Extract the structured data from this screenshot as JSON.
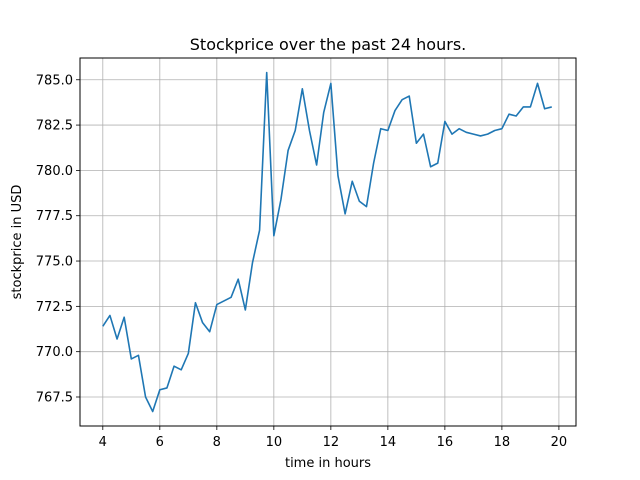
{
  "chart_data": {
    "type": "line",
    "title": "Stockprice over the past 24 hours.",
    "xlabel": "time in hours",
    "ylabel": "stockprice in USD",
    "xlim": [
      3.2,
      20.6
    ],
    "ylim": [
      765.9,
      786.2
    ],
    "grid": true,
    "x_ticks": [
      4,
      6,
      8,
      10,
      12,
      14,
      16,
      18,
      20
    ],
    "x_tick_labels": [
      "4",
      "6",
      "8",
      "10",
      "12",
      "14",
      "16",
      "18",
      "20"
    ],
    "y_ticks": [
      767.5,
      770.0,
      772.5,
      775.0,
      777.5,
      780.0,
      782.5,
      785.0
    ],
    "y_tick_labels": [
      "767.5",
      "770.0",
      "772.5",
      "775.0",
      "777.5",
      "780.0",
      "782.5",
      "785.0"
    ],
    "series": [
      {
        "color": "#1f77b4",
        "x": [
          4.0,
          4.25,
          4.5,
          4.75,
          5.0,
          5.25,
          5.5,
          5.75,
          6.0,
          6.25,
          6.5,
          6.75,
          7.0,
          7.25,
          7.5,
          7.75,
          8.0,
          8.25,
          8.5,
          8.75,
          9.0,
          9.25,
          9.5,
          9.75,
          10.0,
          10.25,
          10.5,
          10.75,
          11.0,
          11.25,
          11.5,
          11.75,
          12.0,
          12.25,
          12.5,
          12.75,
          13.0,
          13.25,
          13.5,
          13.75,
          14.0,
          14.25,
          14.5,
          14.75,
          15.0,
          15.25,
          15.5,
          15.75,
          16.0,
          16.25,
          16.5,
          16.75,
          17.0,
          17.25,
          17.5,
          17.75,
          18.0,
          18.25,
          18.5,
          18.75,
          19.0,
          19.25,
          19.5,
          19.75
        ],
        "y": [
          771.4,
          772.0,
          770.7,
          771.9,
          769.6,
          769.8,
          767.5,
          766.7,
          767.9,
          768.0,
          769.2,
          769.0,
          769.9,
          772.7,
          771.6,
          771.1,
          772.6,
          772.8,
          773.0,
          774.0,
          772.3,
          774.9,
          776.7,
          785.4,
          776.4,
          778.4,
          781.1,
          782.2,
          784.5,
          782.2,
          780.3,
          783.2,
          784.8,
          779.7,
          777.6,
          779.4,
          778.3,
          778.0,
          780.4,
          782.3,
          782.2,
          783.3,
          783.9,
          784.1,
          781.5,
          782.0,
          780.2,
          780.4,
          782.7,
          782.0,
          782.3,
          782.1,
          782.0,
          781.9,
          782.0,
          782.2,
          782.3,
          783.1,
          783.0,
          783.5,
          783.5,
          784.8,
          783.4,
          783.5
        ]
      }
    ]
  }
}
